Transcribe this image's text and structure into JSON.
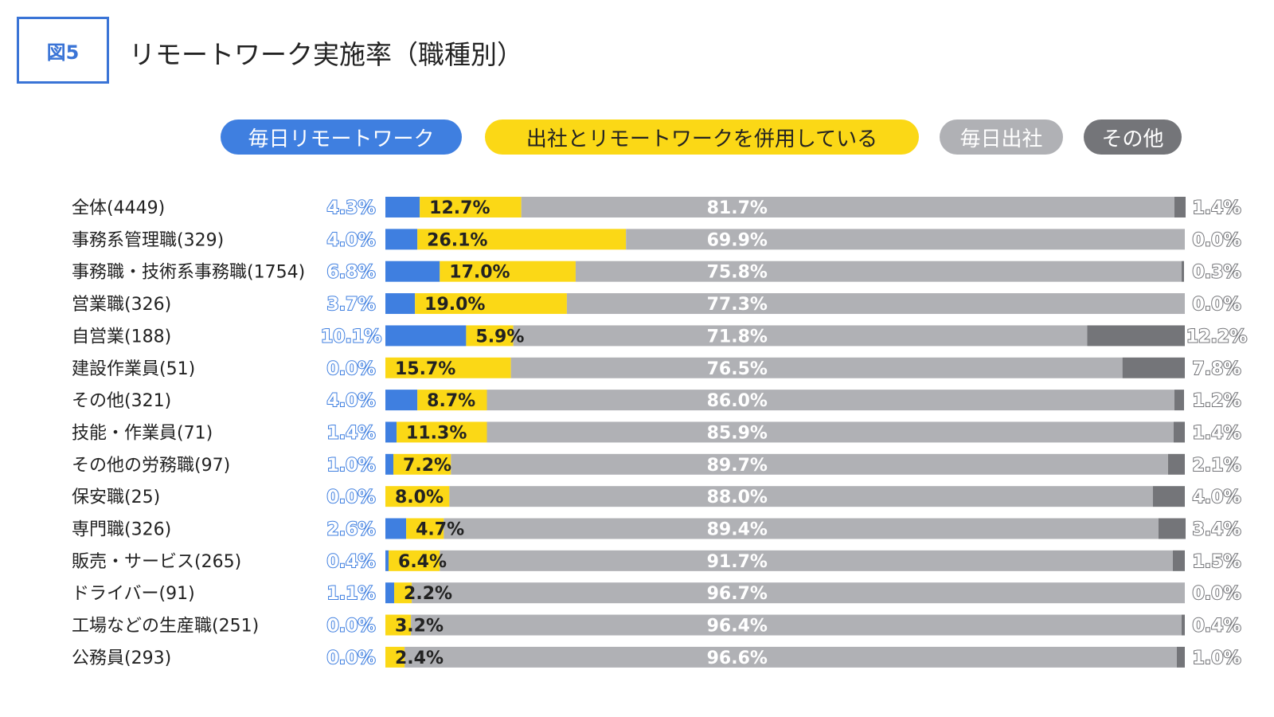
{
  "figure": {
    "badge": "図5",
    "title": "リモートワーク実施率（職種別）"
  },
  "colors": {
    "remote_daily": "#3f7fe0",
    "hybrid": "#fbd816",
    "office_daily": "#b0b1b5",
    "other": "#747579",
    "badge": "#3a74d6"
  },
  "chart_data": {
    "type": "bar",
    "orientation": "horizontal",
    "stacked": true,
    "percent_stacked": true,
    "title": "リモートワーク実施率（職種別）",
    "legend_position": "top",
    "xlim": [
      0,
      100
    ],
    "categories": [
      "全体(4449)",
      "事務系管理職(329)",
      "事務職・技術系事務職(1754)",
      "営業職(326)",
      "自営業(188)",
      "建設作業員(51)",
      "その他(321)",
      "技能・作業員(71)",
      "その他の労務職(97)",
      "保安職(25)",
      "専門職(326)",
      "販売・サービス(265)",
      "ドライバー(91)",
      "工場などの生産職(251)",
      "公務員(293)"
    ],
    "series": [
      {
        "name": "毎日リモートワーク",
        "color": "#3f7fe0",
        "text_color": "#ffffff",
        "values": [
          4.3,
          4.0,
          6.8,
          3.7,
          10.1,
          0.0,
          4.0,
          1.4,
          1.0,
          0.0,
          2.6,
          0.4,
          1.1,
          0.0,
          0.0
        ]
      },
      {
        "name": "出社とリモートワークを併用している",
        "color": "#fbd816",
        "text_color": "#222222",
        "values": [
          12.7,
          26.1,
          17.0,
          19.0,
          5.9,
          15.7,
          8.7,
          11.3,
          7.2,
          8.0,
          4.7,
          6.4,
          2.2,
          3.2,
          2.4
        ]
      },
      {
        "name": "毎日出社",
        "color": "#b0b1b5",
        "text_color": "#ffffff",
        "values": [
          81.7,
          69.9,
          75.8,
          77.3,
          71.8,
          76.5,
          86.0,
          85.9,
          89.7,
          88.0,
          89.4,
          91.7,
          96.7,
          96.4,
          96.6
        ]
      },
      {
        "name": "その他",
        "color": "#747579",
        "text_color": "#ffffff",
        "values": [
          1.4,
          0.0,
          0.3,
          0.0,
          12.2,
          7.8,
          1.2,
          1.4,
          2.1,
          4.0,
          3.4,
          1.5,
          0.0,
          0.4,
          1.0
        ]
      }
    ]
  }
}
